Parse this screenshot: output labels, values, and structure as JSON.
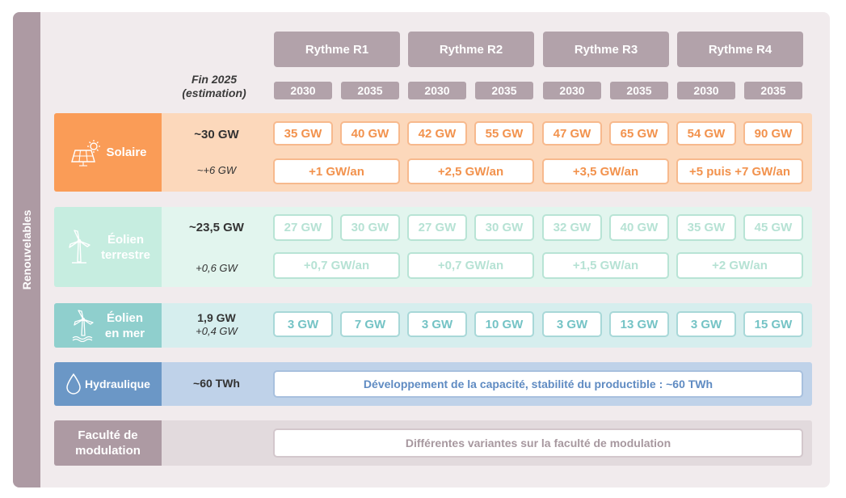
{
  "side_label": "Renouvelables",
  "header": {
    "rhythms": [
      "Rythme R1",
      "Rythme R2",
      "Rythme R3",
      "Rythme R4"
    ],
    "years": [
      "2030",
      "2035",
      "2030",
      "2035",
      "2030",
      "2035",
      "2030",
      "2035"
    ],
    "fin_line1": "Fin 2025",
    "fin_line2": "(estimation)"
  },
  "colors": {
    "solaire": "#fa9c57",
    "terrestre": "#c6ede0",
    "mer": "#8fcfcd",
    "hydraulique": "#6b97c6",
    "modulation": "#ad9aa3"
  },
  "rows": {
    "solaire": {
      "label": "Solaire",
      "value": "~30 GW",
      "delta": "~+6 GW",
      "cells": [
        "35 GW",
        "40 GW",
        "42 GW",
        "55 GW",
        "47 GW",
        "65 GW",
        "54 GW",
        "90 GW"
      ],
      "rates": [
        "+1 GW/an",
        "+2,5 GW/an",
        "+3,5 GW/an",
        "+5 puis +7 GW/an"
      ]
    },
    "terrestre": {
      "label_line1": "Éolien",
      "label_line2": "terrestre",
      "value": "~23,5 GW",
      "delta": "+0,6 GW",
      "cells": [
        "27 GW",
        "30 GW",
        "27 GW",
        "30 GW",
        "32 GW",
        "40 GW",
        "35 GW",
        "45 GW"
      ],
      "rates": [
        "+0,7 GW/an",
        "+0,7 GW/an",
        "+1,5 GW/an",
        "+2 GW/an"
      ]
    },
    "mer": {
      "label_line1": "Éolien",
      "label_line2": "en mer",
      "value": "1,9 GW",
      "delta": "+0,4 GW",
      "cells": [
        "3 GW",
        "7 GW",
        "3 GW",
        "10 GW",
        "3 GW",
        "13 GW",
        "3 GW",
        "15 GW"
      ]
    },
    "hydraulique": {
      "label": "Hydraulique",
      "value": "~60 TWh",
      "text": "Développement de la capacité, stabilité du productible : ~60 TWh"
    },
    "modulation": {
      "label_line1": "Faculté de",
      "label_line2": "modulation",
      "text": "Différentes variantes sur la faculté de modulation"
    }
  }
}
